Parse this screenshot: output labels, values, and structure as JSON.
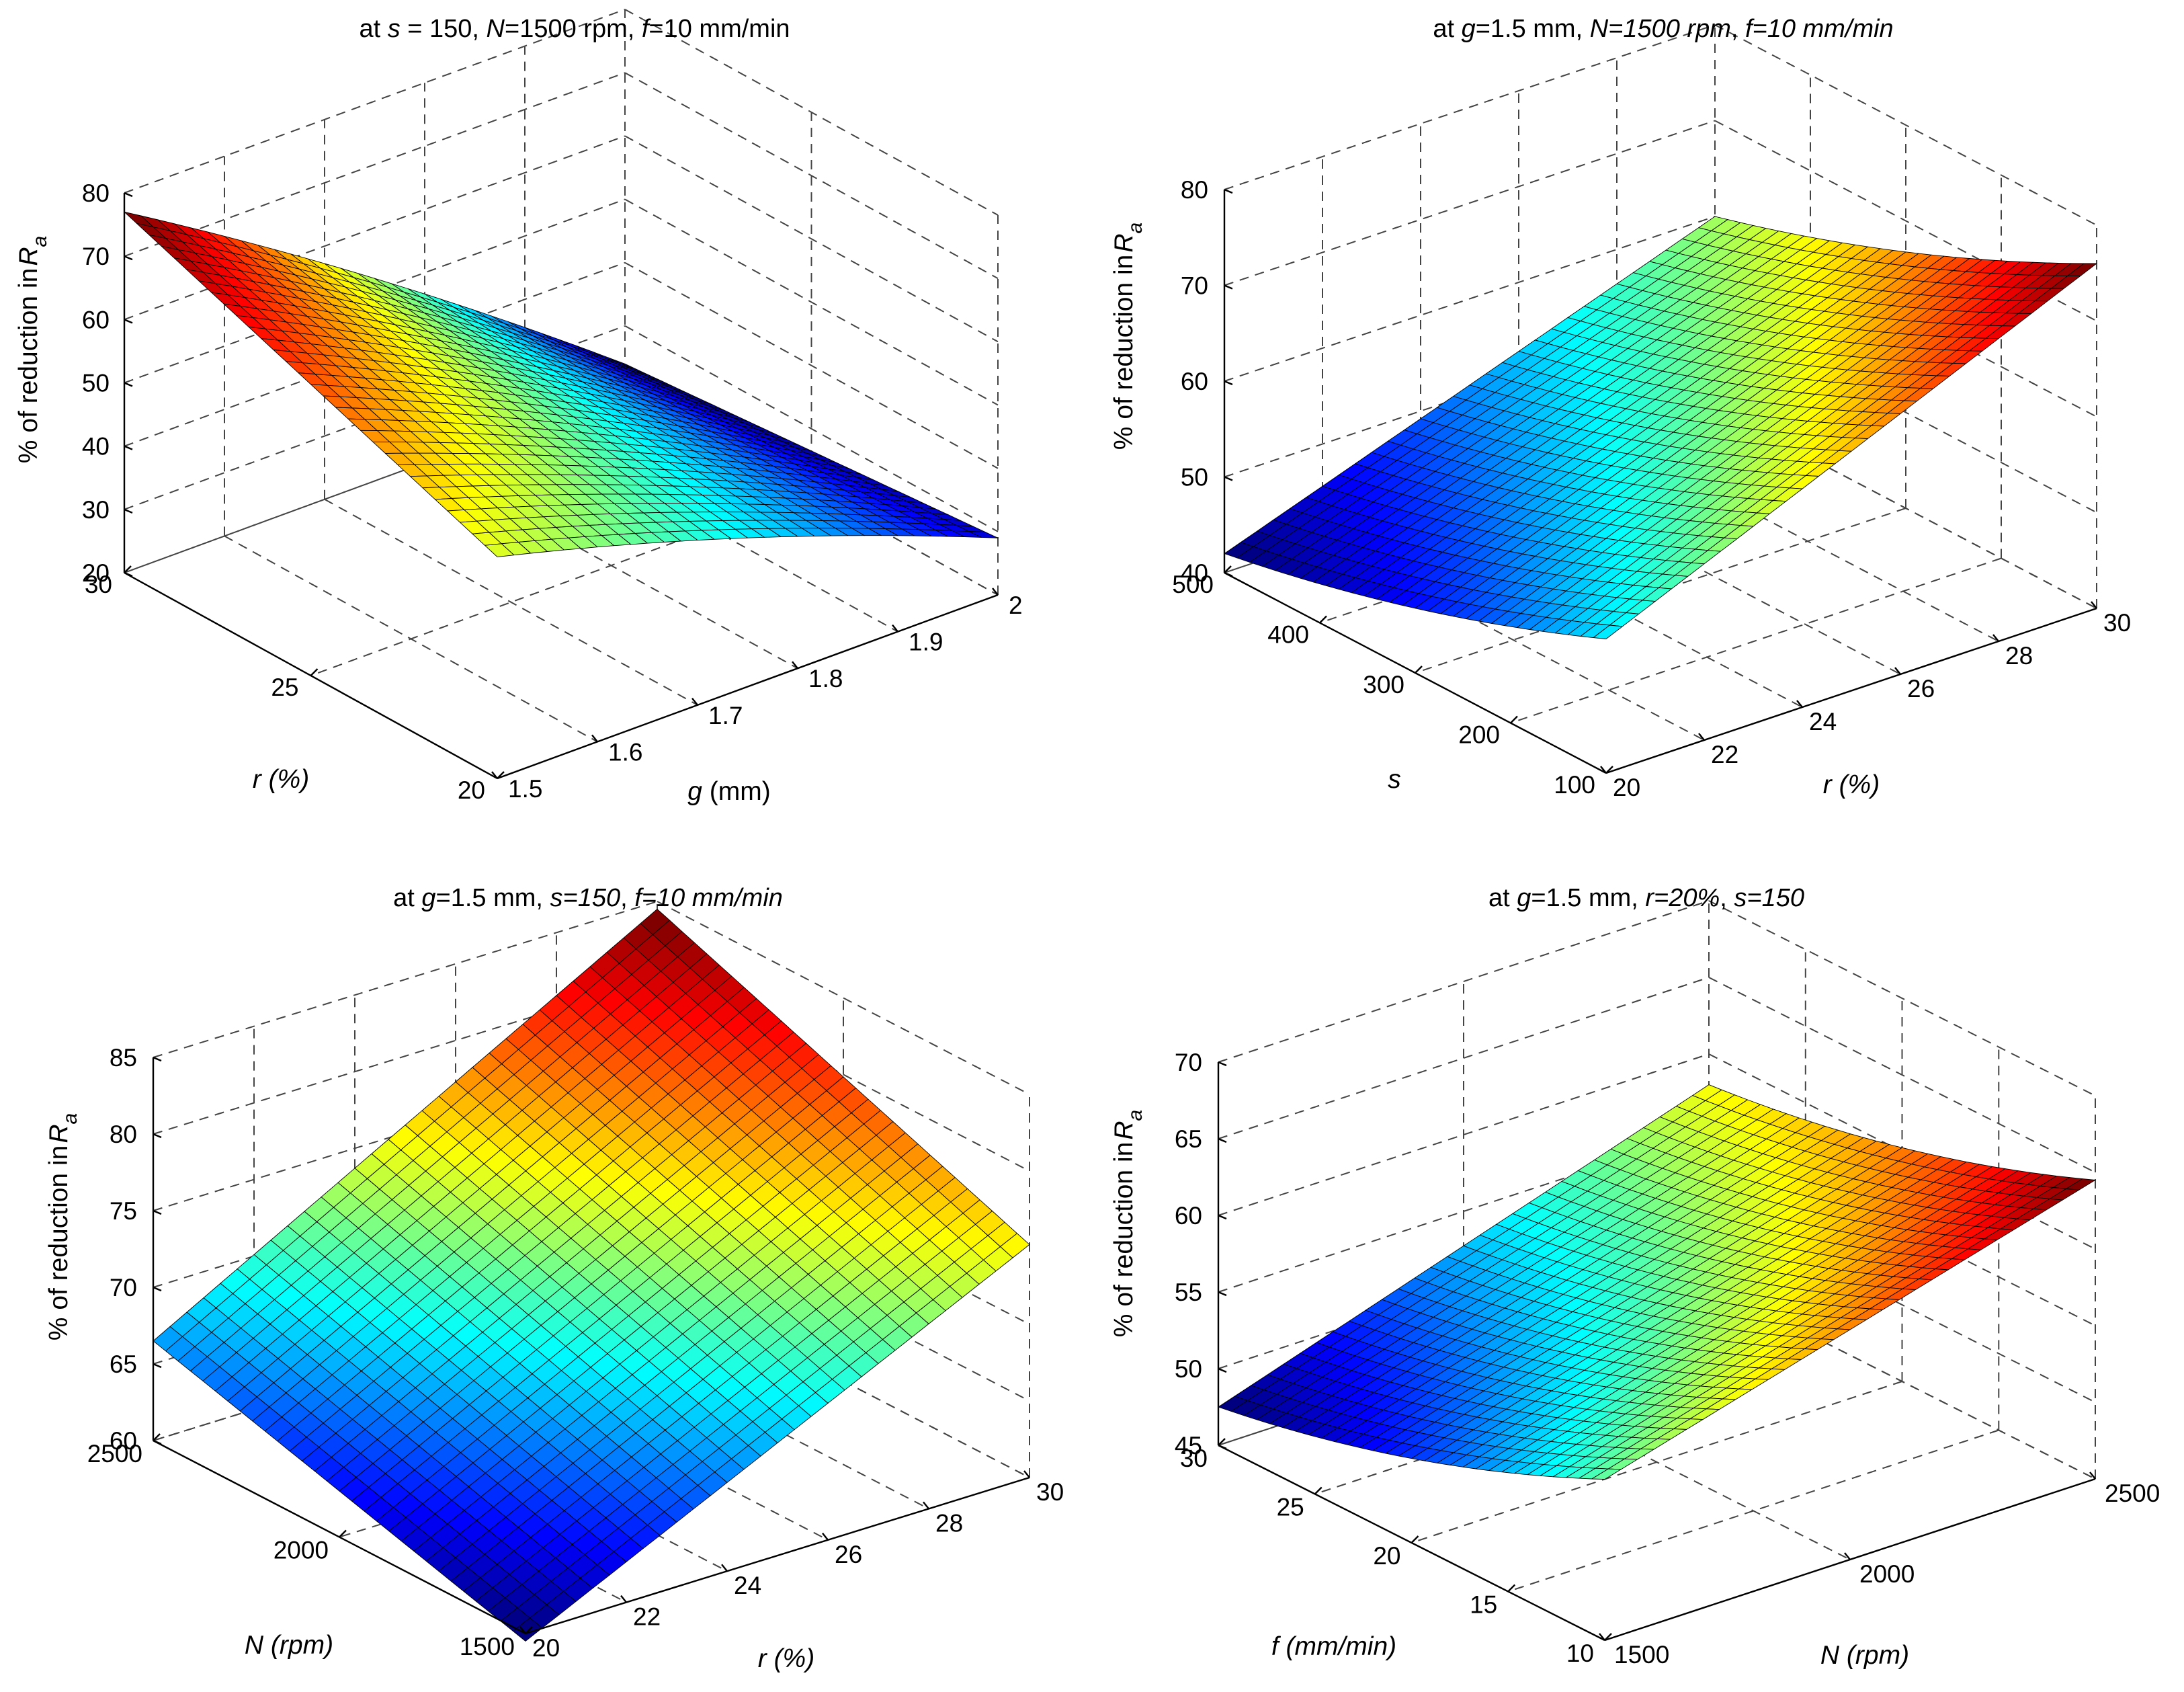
{
  "chart_data": [
    {
      "type": "surface3d",
      "title_parts": [
        {
          "t": "at ",
          "i": false
        },
        {
          "t": "s",
          "i": true
        },
        {
          "t": " = 150, ",
          "i": false
        },
        {
          "t": "N",
          "i": true
        },
        {
          "t": "=1500 rpm, ",
          "i": false
        },
        {
          "t": "f",
          "i": true
        },
        {
          "t": "=10 mm/min",
          "i": false
        }
      ],
      "zlabel": "% of reduction in",
      "zlabel_sym": "R",
      "zlabel_sub": "a",
      "xlabel": "g",
      "xlabel_unit": " (mm)",
      "ylabel": "r (%)",
      "x_ticks": [
        "1.5",
        "1.6",
        "1.7",
        "1.8",
        "1.9",
        "2"
      ],
      "y_ticks": [
        "20",
        "25",
        "30"
      ],
      "z_ticks": [
        "20",
        "30",
        "40",
        "50",
        "60",
        "70",
        "80"
      ],
      "xlim": [
        1.5,
        2
      ],
      "ylim": [
        20,
        30
      ],
      "zlim": [
        20,
        80
      ],
      "corner_values": {
        "x_low_y_low": 55,
        "x_high_y_low": 29,
        "x_low_y_high": 77,
        "x_high_y_high": 24
      },
      "curvature": 6,
      "surface": "z = 55 + 22*v - 26*u - 27*u*v + 6*u*(1-u); u=(g-1.5)/0.5, v=(r-20)/10"
    },
    {
      "type": "surface3d",
      "title_parts": [
        {
          "t": "at ",
          "i": false
        },
        {
          "t": "g",
          "i": true
        },
        {
          "t": "=1.5 mm, ",
          "i": false
        },
        {
          "t": "N=1500 rpm",
          "i": true
        },
        {
          "t": ", ",
          "i": false
        },
        {
          "t": "f=10 mm/min",
          "i": true
        }
      ],
      "zlabel": "% of reduction in",
      "zlabel_sym": "R",
      "zlabel_sub": "a",
      "xlabel": "r (%)",
      "xlabel_unit": "",
      "ylabel": "s",
      "x_ticks": [
        "20",
        "22",
        "24",
        "26",
        "28",
        "30"
      ],
      "y_ticks": [
        "100",
        "200",
        "300",
        "400",
        "500"
      ],
      "z_ticks": [
        "40",
        "50",
        "60",
        "70",
        "80"
      ],
      "xlim": [
        20,
        30
      ],
      "ylim": [
        100,
        500
      ],
      "zlim": [
        40,
        80
      ],
      "corner_values": {
        "x_low_y_low": 54,
        "x_high_y_low": 76,
        "x_low_y_high": 42,
        "x_high_y_high": 60
      },
      "curvature": 5,
      "surface": "z = 54 - 12*v + 22*u - 4*u*v - 5*v*(1-v); u=(r-20)/10, v=(s-100)/400"
    },
    {
      "type": "surface3d",
      "title_parts": [
        {
          "t": "at ",
          "i": false
        },
        {
          "t": "g",
          "i": true
        },
        {
          "t": "=1.5 mm, ",
          "i": false
        },
        {
          "t": "s=150",
          "i": true
        },
        {
          "t": ", ",
          "i": false
        },
        {
          "t": "f=10 mm/min",
          "i": true
        }
      ],
      "zlabel": "% of reduction in",
      "zlabel_sym": "R",
      "zlabel_sub": "a",
      "xlabel": "r (%)",
      "xlabel_unit": "",
      "ylabel": "N (rpm)",
      "x_ticks": [
        "20",
        "22",
        "24",
        "26",
        "28",
        "30"
      ],
      "y_ticks": [
        "1500",
        "2000",
        "2500"
      ],
      "z_ticks": [
        "60",
        "65",
        "70",
        "75",
        "80",
        "85"
      ],
      "xlim": [
        20,
        30
      ],
      "ylim": [
        1500,
        2500
      ],
      "zlim": [
        60,
        85
      ],
      "corner_values": {
        "x_low_y_low": 59.5,
        "x_high_y_low": 75.2,
        "x_low_y_high": 66.5,
        "x_high_y_high": 84.5
      },
      "curvature": 0,
      "surface": "z = 59.5 + 7*v + 15.7*u + 2.3*u*v; u=(r-20)/10, v=(N-1500)/1000"
    },
    {
      "type": "surface3d",
      "title_parts": [
        {
          "t": "at ",
          "i": false
        },
        {
          "t": "g",
          "i": true
        },
        {
          "t": "=1.5 mm, ",
          "i": false
        },
        {
          "t": "r=20%",
          "i": true
        },
        {
          "t": ", ",
          "i": false
        },
        {
          "t": "s=150",
          "i": true
        }
      ],
      "zlabel": "% of reduction in",
      "zlabel_sym": "R",
      "zlabel_sub": "a",
      "xlabel": "N (rpm)",
      "xlabel_unit": "",
      "ylabel": "f (mm/min)",
      "x_ticks": [
        "1500",
        "2000",
        "2500"
      ],
      "y_ticks": [
        "10",
        "15",
        "20",
        "25",
        "30"
      ],
      "z_ticks": [
        "45",
        "50",
        "55",
        "60",
        "65",
        "70"
      ],
      "xlim": [
        1500,
        2500
      ],
      "ylim": [
        10,
        30
      ],
      "zlim": [
        45,
        70
      ],
      "corner_values": {
        "x_low_y_low": 55.5,
        "x_high_y_low": 64.5,
        "x_low_y_high": 47.5,
        "x_high_y_high": 58
      },
      "curvature": 4,
      "surface": "z = 55.5 - 8*v + 9*u + 1.5*u*v - 4*v*(1-v); u=(N-1500)/1000, v=(f-10)/20"
    }
  ]
}
